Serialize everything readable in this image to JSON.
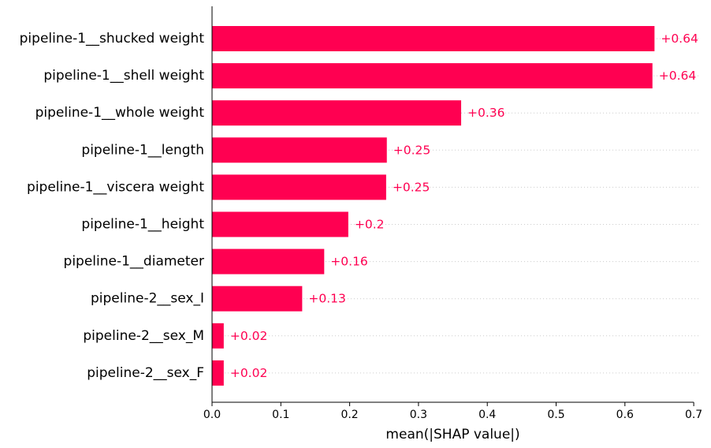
{
  "chart_data": {
    "type": "bar",
    "orientation": "horizontal",
    "title": "",
    "xlabel": "mean(|SHAP value|)",
    "ylabel": "",
    "xlim": [
      0,
      0.7
    ],
    "x_ticks": [
      "0.0",
      "0.1",
      "0.2",
      "0.3",
      "0.4",
      "0.5",
      "0.6",
      "0.7"
    ],
    "grid": "dotted horizontal guide lines per bar",
    "legend": "none",
    "bar_color": "#ff0051",
    "label_color": "#ff0051",
    "categories": [
      "pipeline-1__shucked weight",
      "pipeline-1__shell weight",
      "pipeline-1__whole weight",
      "pipeline-1__length",
      "pipeline-1__viscera weight",
      "pipeline-1__height",
      "pipeline-1__diameter",
      "pipeline-2__sex_I",
      "pipeline-2__sex_M",
      "pipeline-2__sex_F"
    ],
    "values": [
      0.643,
      0.64,
      0.362,
      0.254,
      0.253,
      0.198,
      0.163,
      0.131,
      0.017,
      0.017
    ],
    "value_labels": [
      "+0.64",
      "+0.64",
      "+0.36",
      "+0.25",
      "+0.25",
      "+0.2",
      "+0.16",
      "+0.13",
      "+0.02",
      "+0.02"
    ]
  }
}
